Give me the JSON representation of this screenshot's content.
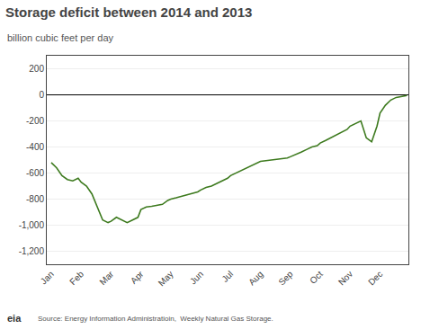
{
  "chart_data": {
    "type": "line",
    "title": "Storage deficit between 2014 and 2013",
    "subtitle": "billion cubic feet per day",
    "annotations": [
      "Source: Energy Information Administratioin,  Weekly Natural Gas Storage.",
      "eia"
    ],
    "color": "#3d7a1e",
    "grid": "y",
    "xlim": [
      -0.15,
      11.95
    ],
    "xticks": [
      {
        "value": 0,
        "label": "Jan"
      },
      {
        "value": 1,
        "label": "Feb"
      },
      {
        "value": 2,
        "label": "Mar"
      },
      {
        "value": 3,
        "label": "Apr"
      },
      {
        "value": 4,
        "label": "May"
      },
      {
        "value": 5,
        "label": "Jun"
      },
      {
        "value": 6,
        "label": "Jul"
      },
      {
        "value": 7,
        "label": "Aug"
      },
      {
        "value": 8,
        "label": "Sep"
      },
      {
        "value": 9,
        "label": "Oct"
      },
      {
        "value": 10,
        "label": "Nov"
      },
      {
        "value": 11,
        "label": "Dec"
      }
    ],
    "ylim": [
      -1300,
      300
    ],
    "yticks": [
      200,
      0,
      -200,
      -400,
      -600,
      -800,
      {
        "value": -1000,
        "label": "-1,000"
      },
      {
        "value": -1200,
        "label": "-1,200"
      }
    ],
    "x": [
      0.0,
      0.18,
      0.36,
      0.54,
      0.72,
      0.9,
      1.0,
      1.18,
      1.36,
      1.54,
      1.72,
      1.9,
      2.0,
      2.18,
      2.36,
      2.54,
      2.72,
      2.9,
      3.0,
      3.18,
      3.36,
      3.54,
      3.72,
      3.9,
      4.0,
      4.18,
      4.36,
      4.54,
      4.72,
      4.9,
      5.0,
      5.18,
      5.36,
      5.54,
      5.72,
      5.9,
      6.0,
      6.18,
      6.36,
      6.54,
      6.72,
      6.9,
      7.0,
      7.18,
      7.36,
      7.54,
      7.72,
      7.9,
      8.0,
      8.18,
      8.36,
      8.54,
      8.72,
      8.9,
      9.0,
      9.18,
      9.36,
      9.54,
      9.72,
      9.9,
      10.0,
      10.18,
      10.36,
      10.54,
      10.72,
      10.9,
      11.0,
      11.18,
      11.36,
      11.54,
      11.72,
      11.9
    ],
    "values": [
      -520,
      -560,
      -620,
      -650,
      -660,
      -640,
      -670,
      -700,
      -760,
      -860,
      -960,
      -980,
      -970,
      -940,
      -960,
      -980,
      -960,
      -940,
      -880,
      -860,
      -855,
      -850,
      -840,
      -810,
      -800,
      -790,
      -780,
      -770,
      -760,
      -745,
      -730,
      -710,
      -700,
      -680,
      -660,
      -640,
      -620,
      -600,
      -580,
      -560,
      -540,
      -520,
      -510,
      -505,
      -500,
      -495,
      -490,
      -485,
      -475,
      -460,
      -440,
      -420,
      -400,
      -390,
      -370,
      -350,
      -330,
      -310,
      -290,
      -265,
      -240,
      -220,
      -200,
      -330,
      -360,
      -240,
      -140,
      -80,
      -40,
      -20,
      -10,
      -5
    ]
  }
}
